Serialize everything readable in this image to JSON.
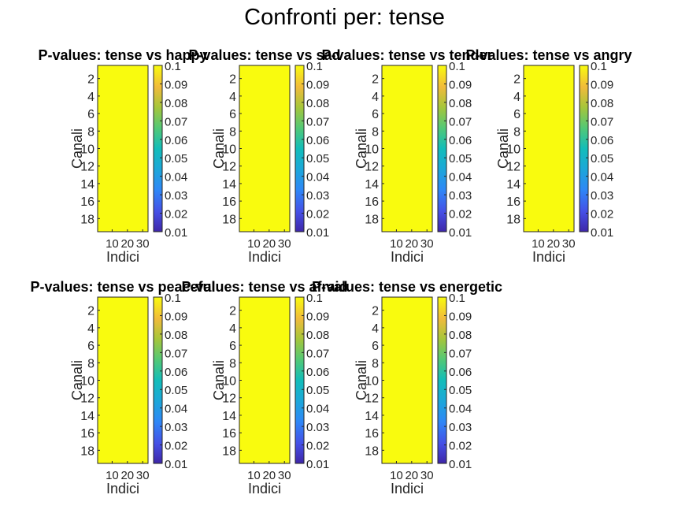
{
  "figure": {
    "title": "Confronti per: tense",
    "heatmap_color": "#f9fb0e"
  },
  "chart_data": [
    {
      "type": "heatmap",
      "title": "P-values: tense vs happy",
      "xlabel": "Indici",
      "ylabel": "Canali",
      "x_ticks": [
        "10",
        "20",
        "30"
      ],
      "y_ticks": [
        "2",
        "4",
        "6",
        "8",
        "10",
        "12",
        "14",
        "16",
        "18"
      ],
      "colorbar": {
        "ticks": [
          "0.1",
          "0.09",
          "0.08",
          "0.07",
          "0.06",
          "0.05",
          "0.04",
          "0.03",
          "0.02",
          "0.01"
        ],
        "clim": [
          0.01,
          0.1
        ]
      },
      "values": "all cells at upper color limit (>= 0.1)"
    },
    {
      "type": "heatmap",
      "title": "P-values: tense vs sad",
      "xlabel": "Indici",
      "ylabel": "Canali",
      "x_ticks": [
        "10",
        "20",
        "30"
      ],
      "y_ticks": [
        "2",
        "4",
        "6",
        "8",
        "10",
        "12",
        "14",
        "16",
        "18"
      ],
      "colorbar": {
        "ticks": [
          "0.1",
          "0.09",
          "0.08",
          "0.07",
          "0.06",
          "0.05",
          "0.04",
          "0.03",
          "0.02",
          "0.01"
        ],
        "clim": [
          0.01,
          0.1
        ]
      },
      "values": "all cells at upper color limit (>= 0.1)"
    },
    {
      "type": "heatmap",
      "title": "P-values: tense vs tender",
      "xlabel": "Indici",
      "ylabel": "Canali",
      "x_ticks": [
        "10",
        "20",
        "30"
      ],
      "y_ticks": [
        "2",
        "4",
        "6",
        "8",
        "10",
        "12",
        "14",
        "16",
        "18"
      ],
      "colorbar": {
        "ticks": [
          "0.1",
          "0.09",
          "0.08",
          "0.07",
          "0.06",
          "0.05",
          "0.04",
          "0.03",
          "0.02",
          "0.01"
        ],
        "clim": [
          0.01,
          0.1
        ]
      },
      "values": "all cells at upper color limit (>= 0.1)"
    },
    {
      "type": "heatmap",
      "title": "P-values: tense vs angry",
      "xlabel": "Indici",
      "ylabel": "Canali",
      "x_ticks": [
        "10",
        "20",
        "30"
      ],
      "y_ticks": [
        "2",
        "4",
        "6",
        "8",
        "10",
        "12",
        "14",
        "16",
        "18"
      ],
      "colorbar": {
        "ticks": [
          "0.1",
          "0.09",
          "0.08",
          "0.07",
          "0.06",
          "0.05",
          "0.04",
          "0.03",
          "0.02",
          "0.01"
        ],
        "clim": [
          0.01,
          0.1
        ]
      },
      "values": "all cells at upper color limit (>= 0.1)"
    },
    {
      "type": "heatmap",
      "title": "P-values: tense vs peaceful",
      "xlabel": "Indici",
      "ylabel": "Canali",
      "x_ticks": [
        "10",
        "20",
        "30"
      ],
      "y_ticks": [
        "2",
        "4",
        "6",
        "8",
        "10",
        "12",
        "14",
        "16",
        "18"
      ],
      "colorbar": {
        "ticks": [
          "0.1",
          "0.09",
          "0.08",
          "0.07",
          "0.06",
          "0.05",
          "0.04",
          "0.03",
          "0.02",
          "0.01"
        ],
        "clim": [
          0.01,
          0.1
        ]
      },
      "values": "all cells at upper color limit (>= 0.1)"
    },
    {
      "type": "heatmap",
      "title": "P-values: tense vs afraid",
      "xlabel": "Indici",
      "ylabel": "Canali",
      "x_ticks": [
        "10",
        "20",
        "30"
      ],
      "y_ticks": [
        "2",
        "4",
        "6",
        "8",
        "10",
        "12",
        "14",
        "16",
        "18"
      ],
      "colorbar": {
        "ticks": [
          "0.1",
          "0.09",
          "0.08",
          "0.07",
          "0.06",
          "0.05",
          "0.04",
          "0.03",
          "0.02",
          "0.01"
        ],
        "clim": [
          0.01,
          0.1
        ]
      },
      "values": "all cells at upper color limit (>= 0.1)"
    },
    {
      "type": "heatmap",
      "title": "P-values: tense vs energetic",
      "xlabel": "Indici",
      "ylabel": "Canali",
      "x_ticks": [
        "10",
        "20",
        "30"
      ],
      "y_ticks": [
        "2",
        "4",
        "6",
        "8",
        "10",
        "12",
        "14",
        "16",
        "18"
      ],
      "colorbar": {
        "ticks": [
          "0.1",
          "0.09",
          "0.08",
          "0.07",
          "0.06",
          "0.05",
          "0.04",
          "0.03",
          "0.02",
          "0.01"
        ],
        "clim": [
          0.01,
          0.1
        ]
      },
      "values": "all cells at upper color limit (>= 0.1)"
    }
  ]
}
